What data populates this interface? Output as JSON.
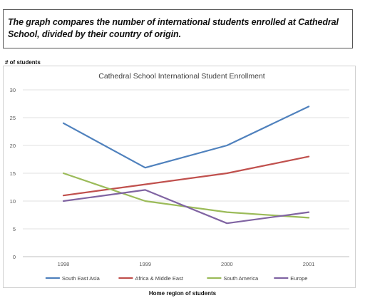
{
  "caption": "The graph compares the number of international students enrolled at Cathedral School, divided by their country of origin.",
  "chart_data": {
    "type": "line",
    "title": "Cathedral School International Student Enrollment",
    "ylabel": "# of students",
    "xlabel": "Home region of students",
    "x": [
      "1998",
      "1999",
      "2000",
      "2001"
    ],
    "ylim": [
      0,
      30
    ],
    "yticks": [
      0,
      5,
      10,
      15,
      20,
      25,
      30
    ],
    "grid": true,
    "legend_position": "bottom",
    "series": [
      {
        "name": "South East Asia",
        "color": "#4F81BD",
        "values": [
          24,
          16,
          20,
          27
        ]
      },
      {
        "name": "Africa & Middle East",
        "color": "#C0504D",
        "values": [
          11,
          13,
          15,
          18
        ]
      },
      {
        "name": "South America",
        "color": "#9BBB59",
        "values": [
          15,
          10,
          8,
          7
        ]
      },
      {
        "name": "Europe",
        "color": "#8064A2",
        "values": [
          10,
          12,
          6,
          8
        ]
      }
    ]
  }
}
